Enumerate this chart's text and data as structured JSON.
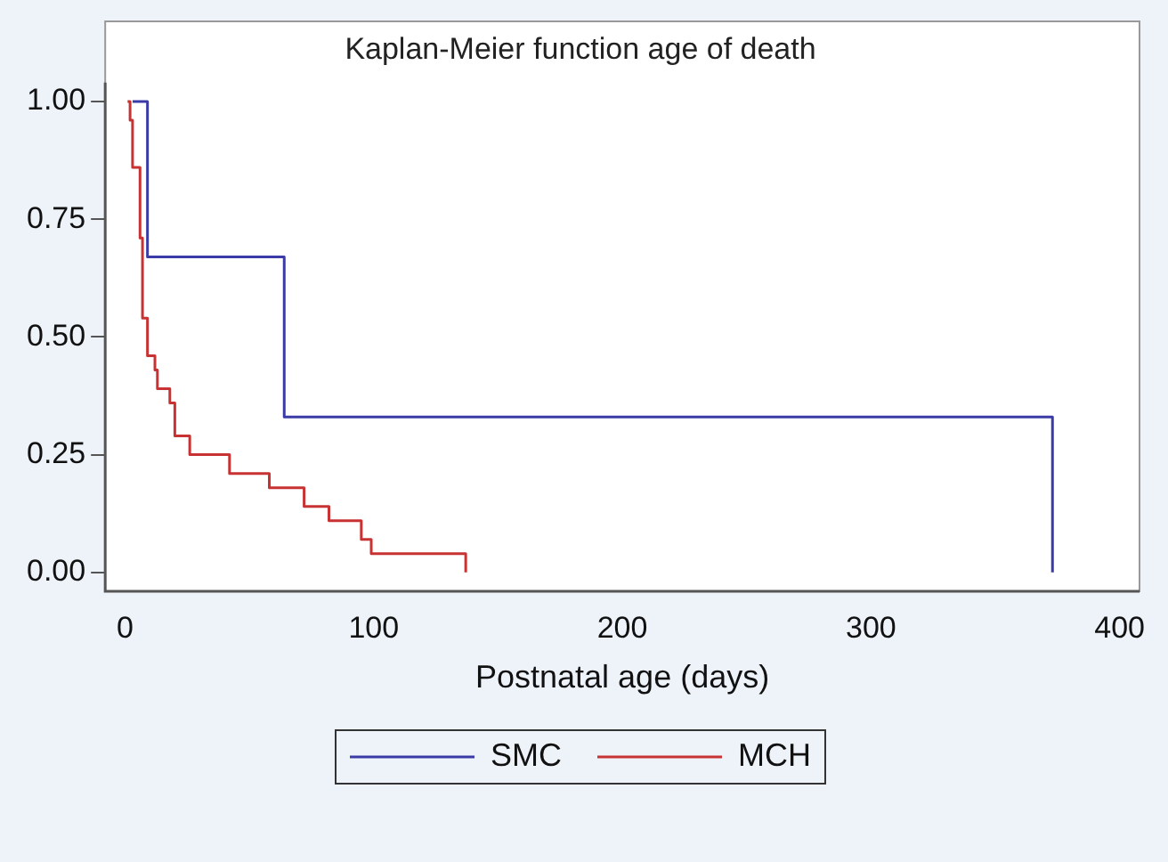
{
  "chart_data": {
    "type": "step",
    "title": "Kaplan-Meier function age of death",
    "xlabel": "Postnatal age (days)",
    "series": [
      {
        "name": "SMC",
        "color": "#3b3ba8",
        "x": [
          3,
          9,
          64,
          373
        ],
        "values": [
          1,
          0.67,
          0.33,
          0
        ]
      },
      {
        "name": "MCH",
        "color": "#c83232",
        "x": [
          1,
          2,
          3,
          6,
          7,
          9,
          12,
          13,
          18,
          20,
          26,
          42,
          58,
          72,
          82,
          95,
          99,
          137
        ],
        "values": [
          1,
          0.96,
          0.86,
          0.71,
          0.54,
          0.46,
          0.43,
          0.39,
          0.36,
          0.29,
          0.25,
          0.21,
          0.18,
          0.14,
          0.11,
          0.07,
          0.04,
          0
        ]
      }
    ],
    "xlim": [
      -8,
      408
    ],
    "xticks": [
      0,
      100,
      200,
      300,
      400
    ],
    "ylim": [
      -0.04,
      1.04
    ],
    "yticks": [
      {
        "value": 0,
        "label": "0.00"
      },
      {
        "value": 0.25,
        "label": "0.25"
      },
      {
        "value": 0.5,
        "label": "0.50"
      },
      {
        "value": 0.75,
        "label": "0.75"
      },
      {
        "value": 1,
        "label": "1.00"
      }
    ],
    "grid": false,
    "legend": "bottom",
    "line_style": "solid",
    "marker": "none"
  }
}
